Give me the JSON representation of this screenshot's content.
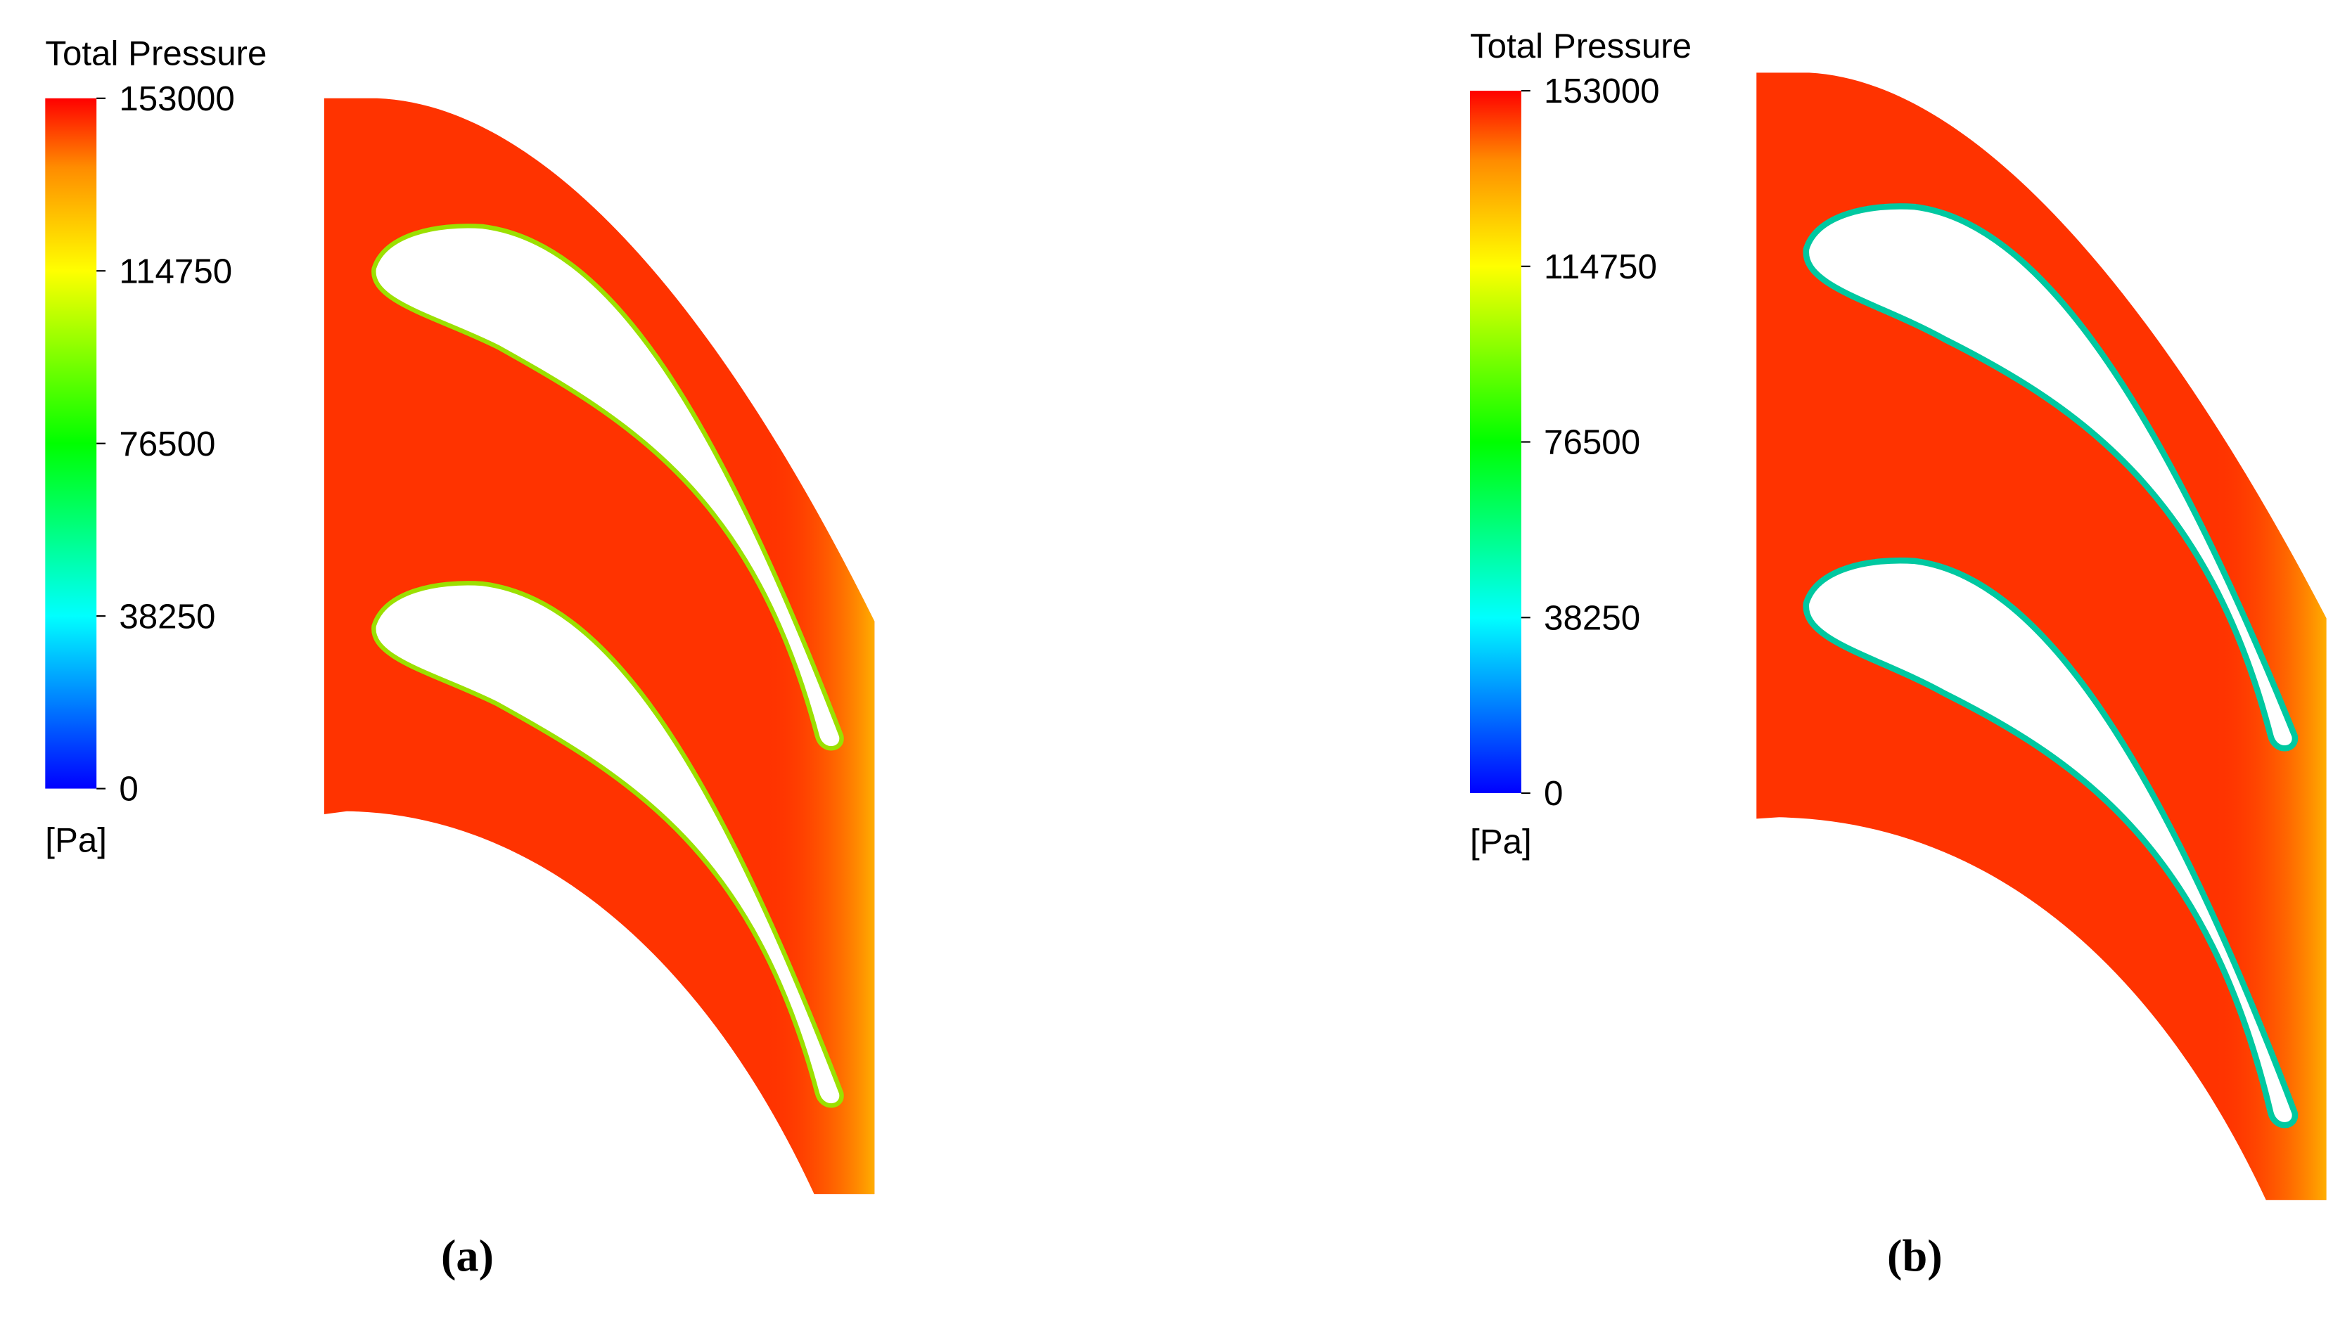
{
  "panels": [
    {
      "legend_title": "Total Pressure",
      "ticks": [
        153000,
        114750,
        76500,
        38250,
        0
      ],
      "unit": "[Pa]",
      "caption": "(a)"
    },
    {
      "legend_title": "Total Pressure",
      "ticks": [
        153000,
        114750,
        76500,
        38250,
        0
      ],
      "unit": "[Pa]",
      "caption": "(b)"
    }
  ]
}
